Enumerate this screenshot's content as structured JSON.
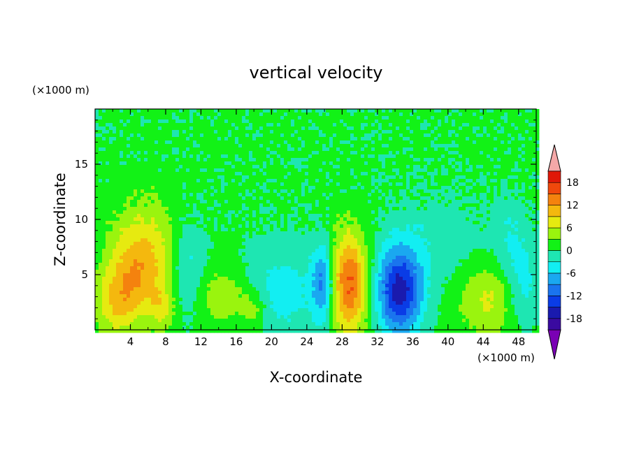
{
  "chart_data": {
    "type": "heatmap",
    "title": "vertical velocity",
    "xlabel": "X-coordinate",
    "ylabel": "Z-coordinate",
    "x_unit": "(×1000 m)",
    "y_unit": "(×1000 m)",
    "xlim": [
      0,
      50
    ],
    "ylim": [
      0,
      20
    ],
    "x_ticks": [
      "4",
      "8",
      "12",
      "16",
      "20",
      "24",
      "28",
      "32",
      "36",
      "40",
      "44",
      "48"
    ],
    "y_ticks": [
      "5",
      "10",
      "15"
    ],
    "colorbar": {
      "levels": [
        -21,
        -18,
        -15,
        -12,
        -9,
        -6,
        -3,
        0,
        3,
        6,
        9,
        12,
        15,
        18,
        21
      ],
      "labels": [
        "18",
        "12",
        "6",
        "0",
        "-6",
        "-12",
        "-18"
      ],
      "colors": [
        "#7a00b4",
        "#3a0aa0",
        "#1a1aae",
        "#0a3ce6",
        "#1a74ee",
        "#1aa8f0",
        "#12eef2",
        "#1ee6b2",
        "#12f216",
        "#9af40e",
        "#e6ea10",
        "#f4b80e",
        "#f4820e",
        "#f0480c",
        "#e01808",
        "#f4a8a8"
      ],
      "extend": "both"
    },
    "features": [
      {
        "x": 5.5,
        "z": 6.5,
        "sx": 2.6,
        "sz": 3.4,
        "w": 9
      },
      {
        "x": 4.0,
        "z": 4.0,
        "sx": 1.8,
        "sz": 2.2,
        "w": 4
      },
      {
        "x": 2.2,
        "z": 2.2,
        "sx": 1.6,
        "sz": 2.2,
        "w": 6
      },
      {
        "x": 7.5,
        "z": 2.0,
        "sx": 1.0,
        "sz": 1.4,
        "w": 5
      },
      {
        "x": 10.5,
        "z": 5.5,
        "sx": 1.4,
        "sz": 3.0,
        "w": -5
      },
      {
        "x": 14.5,
        "z": 3.0,
        "sx": 2.2,
        "sz": 1.8,
        "w": 5
      },
      {
        "x": 18.0,
        "z": 1.8,
        "sx": 1.0,
        "sz": 1.2,
        "w": 5
      },
      {
        "x": 21.0,
        "z": 3.5,
        "sx": 3.0,
        "sz": 3.0,
        "w": -5
      },
      {
        "x": 25.8,
        "z": 4.2,
        "sx": 0.9,
        "sz": 2.6,
        "w": -10
      },
      {
        "x": 28.8,
        "z": 4.2,
        "sx": 1.5,
        "sz": 3.2,
        "w": 15
      },
      {
        "x": 34.5,
        "z": 3.5,
        "sx": 1.8,
        "sz": 2.8,
        "w": -17
      },
      {
        "x": 44.5,
        "z": 2.8,
        "sx": 2.4,
        "sz": 2.4,
        "w": 6
      },
      {
        "x": 48.5,
        "z": 4.0,
        "sx": 1.4,
        "sz": 2.6,
        "w": -5
      },
      {
        "x": 39.0,
        "z": 8.0,
        "sx": 4.0,
        "sz": 3.0,
        "w": -2.5
      },
      {
        "x": 47.0,
        "z": 8.5,
        "sx": 1.5,
        "sz": 2.5,
        "w": -3
      }
    ]
  }
}
